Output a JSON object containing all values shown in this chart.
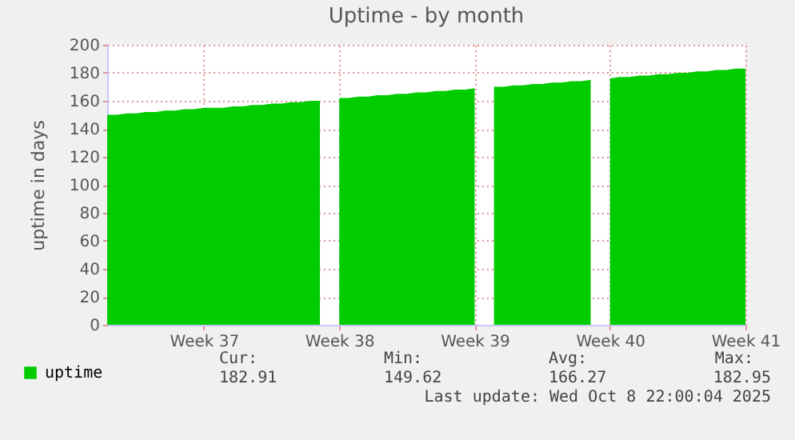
{
  "chart_data": {
    "type": "area",
    "title": "Uptime - by month",
    "ylabel": "uptime in days",
    "categories": [
      null,
      null,
      null,
      null,
      null,
      null,
      null,
      null,
      null,
      null,
      "Week 37",
      null,
      null,
      null,
      null,
      null,
      null,
      null,
      null,
      null,
      null,
      null,
      null,
      null,
      "Week 38",
      null,
      null,
      null,
      null,
      null,
      null,
      null,
      null,
      null,
      null,
      null,
      null,
      null,
      "Week 39",
      null,
      null,
      null,
      null,
      null,
      null,
      null,
      null,
      null,
      null,
      null,
      null,
      null,
      "Week 40",
      null,
      null,
      null,
      null,
      null,
      null,
      null,
      null,
      null,
      null,
      null,
      null,
      null,
      "Week 41"
    ],
    "series": [
      {
        "name": "uptime",
        "color": "#00cc00",
        "values": [
          150,
          150,
          151,
          151,
          152,
          152,
          153,
          153,
          154,
          154,
          155,
          155,
          155,
          156,
          156,
          157,
          157,
          158,
          158,
          159,
          159,
          160,
          160,
          null,
          162,
          162,
          163,
          163,
          164,
          164,
          165,
          165,
          166,
          166,
          167,
          167,
          168,
          168,
          169,
          null,
          170,
          170,
          171,
          171,
          172,
          172,
          173,
          173,
          174,
          174,
          175,
          null,
          176,
          177,
          177,
          178,
          178,
          179,
          179,
          180,
          180,
          181,
          181,
          182,
          182,
          183,
          183
        ]
      }
    ],
    "ylim": [
      0,
      200
    ],
    "yticks": [
      0,
      20,
      40,
      60,
      80,
      100,
      120,
      140,
      160,
      180,
      200
    ],
    "grid": true,
    "legend": "bottom left",
    "annotations": [
      "Cur:",
      "Min:",
      "Avg:",
      "Max:",
      "182.91",
      "149.62",
      "166.27",
      "182.95",
      "Last update: Wed Oct  8 22:00:04 2025"
    ]
  }
}
